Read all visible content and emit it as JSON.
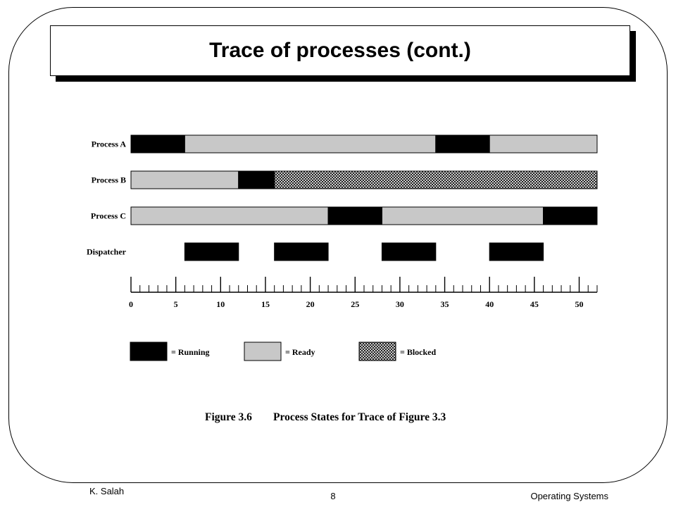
{
  "slide": {
    "title": "Trace of processes (cont.)",
    "footer_author": "K. Salah",
    "footer_page": "8",
    "footer_course": "Operating Systems"
  },
  "figure": {
    "caption_label": "Figure 3.6",
    "caption_text": "Process States for Trace of Figure 3.3"
  },
  "chart_data": {
    "type": "timeline",
    "xlim": [
      0,
      52
    ],
    "ticks": [
      "0",
      "5",
      "10",
      "15",
      "20",
      "25",
      "30",
      "35",
      "40",
      "45",
      "50"
    ],
    "tick_values": [
      0,
      5,
      10,
      15,
      20,
      25,
      30,
      35,
      40,
      45,
      50
    ],
    "minor_tick_step": 1,
    "colors": {
      "running": "#000000",
      "ready": "#c8c8c8",
      "blocked": "crosshatch"
    },
    "rows": [
      {
        "label": "Process A",
        "segments": [
          {
            "start": 0,
            "end": 6,
            "state": "running"
          },
          {
            "start": 6,
            "end": 34,
            "state": "ready"
          },
          {
            "start": 34,
            "end": 40,
            "state": "running"
          },
          {
            "start": 40,
            "end": 52,
            "state": "ready"
          }
        ]
      },
      {
        "label": "Process B",
        "segments": [
          {
            "start": 0,
            "end": 12,
            "state": "ready"
          },
          {
            "start": 12,
            "end": 16,
            "state": "running"
          },
          {
            "start": 16,
            "end": 52,
            "state": "blocked"
          }
        ]
      },
      {
        "label": "Process C",
        "segments": [
          {
            "start": 0,
            "end": 22,
            "state": "ready"
          },
          {
            "start": 22,
            "end": 28,
            "state": "running"
          },
          {
            "start": 28,
            "end": 46,
            "state": "ready"
          },
          {
            "start": 46,
            "end": 52,
            "state": "running"
          }
        ]
      },
      {
        "label": "Dispatcher",
        "segments": [
          {
            "start": 6,
            "end": 12,
            "state": "running"
          },
          {
            "start": 16,
            "end": 22,
            "state": "running"
          },
          {
            "start": 28,
            "end": 34,
            "state": "running"
          },
          {
            "start": 40,
            "end": 46,
            "state": "running"
          }
        ]
      }
    ],
    "legend": [
      {
        "state": "running",
        "label": "= Running"
      },
      {
        "state": "ready",
        "label": "= Ready"
      },
      {
        "state": "blocked",
        "label": "= Blocked"
      }
    ]
  }
}
